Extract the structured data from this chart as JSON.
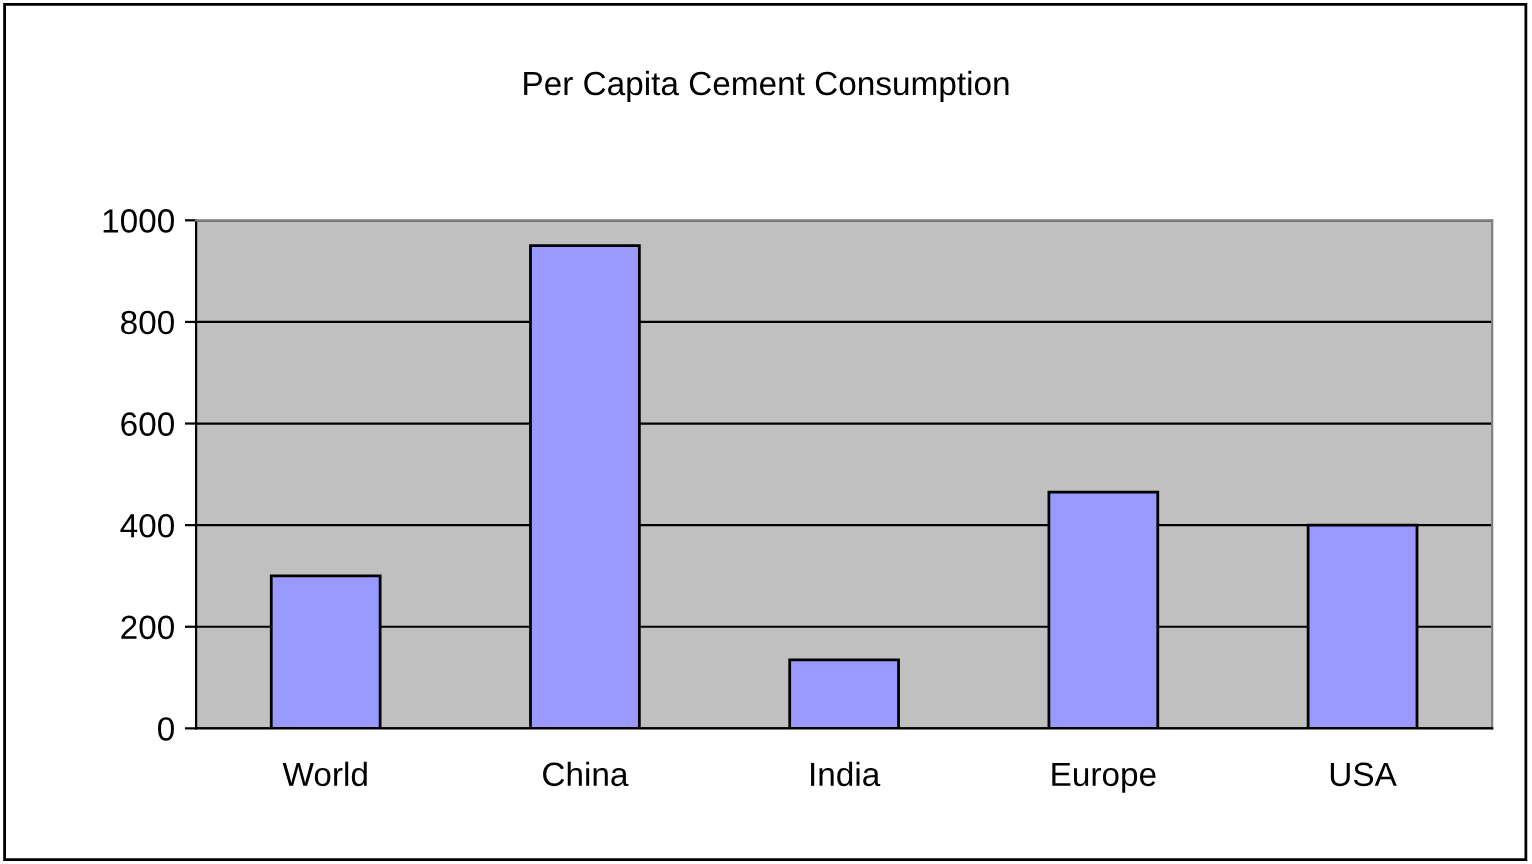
{
  "chart_data": {
    "type": "bar",
    "title": "Per Capita Cement Consumption",
    "categories": [
      "World",
      "China",
      "India",
      "Europe",
      "USA"
    ],
    "values": [
      300,
      950,
      135,
      465,
      400
    ],
    "color": "#9999ff",
    "ylim": [
      0,
      1000
    ],
    "yticks": [
      0,
      200,
      400,
      600,
      800,
      1000
    ],
    "grid": "y",
    "legend": false
  }
}
